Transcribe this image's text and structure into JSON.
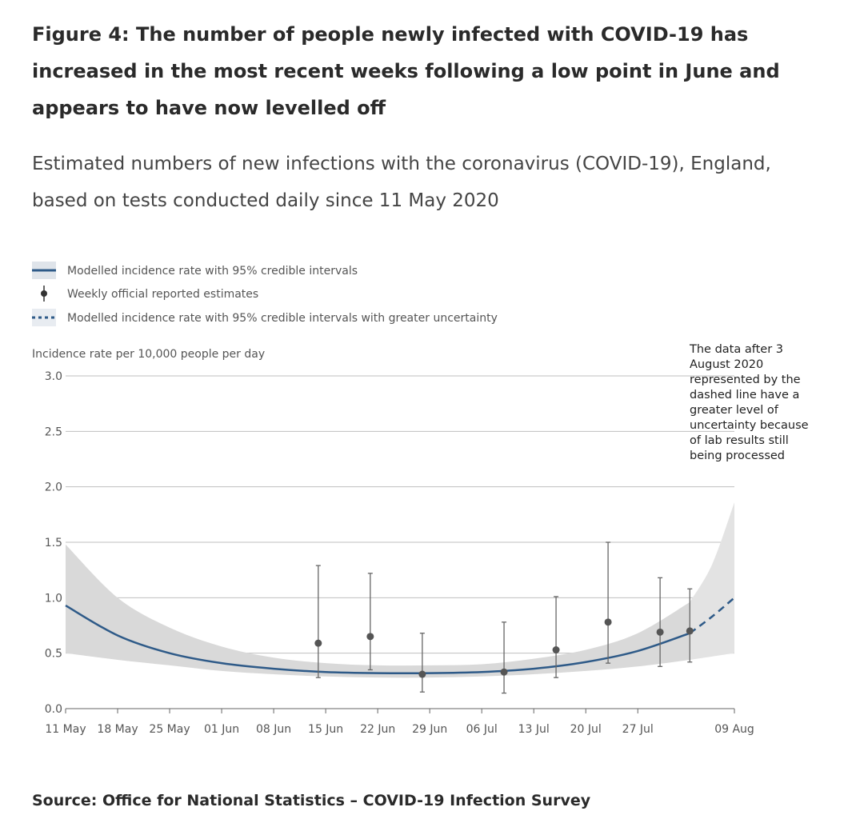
{
  "title": "Figure 4: The number of people newly infected with COVID-19 has increased in the most recent weeks following a low point in June and appears to have now levelled off",
  "subtitle": "Estimated numbers of new infections with the coronavirus (COVID-19), England, based on tests conducted daily since 11 May 2020",
  "source": "Source: Office for National Statistics – COVID-19 Infection Survey",
  "colors": {
    "line": "#2e5a88",
    "band": "#d9d9d9",
    "marker": "#555555",
    "grid": "#bfbfbf",
    "text": "#555555"
  },
  "chart_data": {
    "type": "line",
    "ylabel": "Incidence rate per 10,000 people per day",
    "ylim": [
      0,
      3.0
    ],
    "xlim": [
      "2020-05-11",
      "2020-08-09"
    ],
    "y_ticks": [
      {
        "value": 0,
        "label": "0.0"
      },
      {
        "value": 0.5,
        "label": "0.5"
      },
      {
        "value": 1.0,
        "label": "1.0"
      },
      {
        "value": 1.5,
        "label": "1.5"
      },
      {
        "value": 2.0,
        "label": "2.0"
      },
      {
        "value": 2.5,
        "label": "2.5"
      },
      {
        "value": 3.0,
        "label": "3.0"
      }
    ],
    "x_ticks": [
      {
        "date": "2020-05-11",
        "label": "11 May"
      },
      {
        "date": "2020-05-18",
        "label": "18 May"
      },
      {
        "date": "2020-05-25",
        "label": "25 May"
      },
      {
        "date": "2020-06-01",
        "label": "01 Jun"
      },
      {
        "date": "2020-06-08",
        "label": "08 Jun"
      },
      {
        "date": "2020-06-15",
        "label": "15 Jun"
      },
      {
        "date": "2020-06-22",
        "label": "22 Jun"
      },
      {
        "date": "2020-06-29",
        "label": "29 Jun"
      },
      {
        "date": "2020-07-06",
        "label": "06 Jul"
      },
      {
        "date": "2020-07-13",
        "label": "13 Jul"
      },
      {
        "date": "2020-07-20",
        "label": "20 Jul"
      },
      {
        "date": "2020-07-27",
        "label": "27 Jul"
      },
      {
        "date": "2020-08-09",
        "label": "09 Aug"
      }
    ],
    "legend": [
      {
        "label": "Modelled incidence rate with 95% credible intervals",
        "style": "solid"
      },
      {
        "label": "Weekly official reported estimates",
        "style": "errorbar"
      },
      {
        "label": "Modelled incidence rate with 95% credible intervals with greater uncertainty",
        "style": "dashed"
      }
    ],
    "legend_position": "top-left",
    "grid": true,
    "series": [
      {
        "name": "Modelled incidence rate with 95% credible intervals",
        "style": "solid",
        "x": [
          "2020-05-11",
          "2020-05-18",
          "2020-05-25",
          "2020-06-01",
          "2020-06-08",
          "2020-06-15",
          "2020-06-22",
          "2020-06-29",
          "2020-07-06",
          "2020-07-13",
          "2020-07-20",
          "2020-07-27",
          "2020-08-03"
        ],
        "y": [
          0.93,
          0.66,
          0.5,
          0.41,
          0.36,
          0.33,
          0.32,
          0.32,
          0.33,
          0.36,
          0.42,
          0.52,
          0.68
        ],
        "lower": [
          0.5,
          0.44,
          0.39,
          0.34,
          0.31,
          0.29,
          0.28,
          0.28,
          0.29,
          0.31,
          0.34,
          0.38,
          0.44
        ],
        "upper": [
          1.48,
          1.0,
          0.73,
          0.56,
          0.46,
          0.41,
          0.39,
          0.39,
          0.4,
          0.45,
          0.53,
          0.68,
          0.96
        ]
      },
      {
        "name": "Modelled incidence rate with 95% credible intervals with greater uncertainty",
        "style": "dashed",
        "x": [
          "2020-08-03",
          "2020-08-06",
          "2020-08-09"
        ],
        "y": [
          0.68,
          0.83,
          1.0
        ],
        "lower": [
          0.44,
          0.47,
          0.5
        ],
        "upper": [
          0.96,
          1.3,
          1.86
        ]
      },
      {
        "name": "Weekly official reported estimates",
        "style": "errorbar",
        "points": [
          {
            "x": "2020-06-14",
            "y": 0.59,
            "low": 0.28,
            "high": 1.29
          },
          {
            "x": "2020-06-21",
            "y": 0.65,
            "low": 0.35,
            "high": 1.22
          },
          {
            "x": "2020-06-28",
            "y": 0.31,
            "low": 0.15,
            "high": 0.68
          },
          {
            "x": "2020-07-09",
            "y": 0.33,
            "low": 0.14,
            "high": 0.78
          },
          {
            "x": "2020-07-16",
            "y": 0.53,
            "low": 0.28,
            "high": 1.01
          },
          {
            "x": "2020-07-23",
            "y": 0.78,
            "low": 0.41,
            "high": 1.5
          },
          {
            "x": "2020-07-30",
            "y": 0.69,
            "low": 0.38,
            "high": 1.18
          },
          {
            "x": "2020-08-03",
            "y": 0.7,
            "low": 0.42,
            "high": 1.08
          }
        ]
      }
    ],
    "annotations": [
      {
        "x": "2020-08-04",
        "text_lines": [
          "The data after 3",
          "August 2020",
          "represented by the",
          "dashed line have a",
          "greater level of",
          "uncertainty because",
          "of lab results still",
          "being processed"
        ]
      }
    ]
  }
}
